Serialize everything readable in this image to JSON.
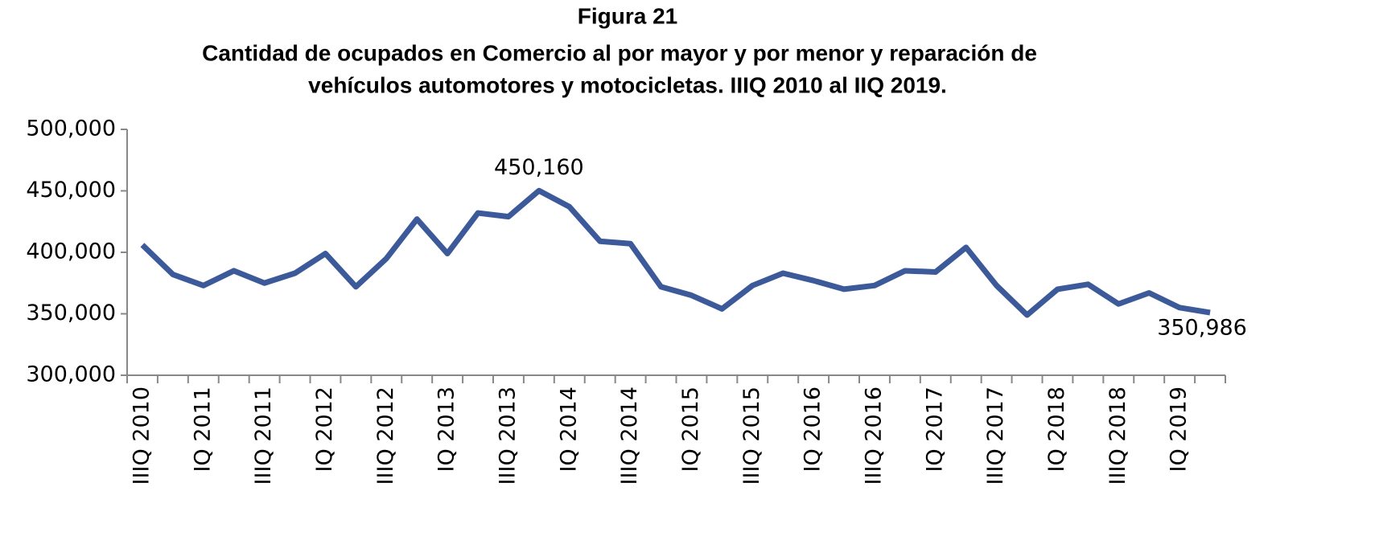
{
  "chart_data": {
    "type": "line",
    "title": "Figura 21",
    "subtitle": [
      "Cantidad de ocupados en Comercio al por mayor y por menor y reparación de",
      "vehículos automotores y motocicletas. IIIQ 2010 al IIQ 2019."
    ],
    "categories": [
      "IIIQ 2010",
      null,
      "IQ 2011",
      null,
      "IIIQ 2011",
      null,
      "IQ 2012",
      null,
      "IIIQ 2012",
      null,
      "IQ 2013",
      null,
      "IIIQ 2013",
      null,
      "IQ 2014",
      null,
      "IIIQ 2014",
      null,
      "IQ 2015",
      null,
      "IIIQ 2015",
      null,
      "IQ 2016",
      null,
      "IIIQ 2016",
      null,
      "IQ 2017",
      null,
      "IIIQ 2017",
      null,
      "IQ 2018",
      null,
      "IIIQ 2018",
      null,
      "IQ 2019",
      null
    ],
    "series": [
      {
        "color": "#3c5a9a",
        "values": [
          406000,
          382000,
          373000,
          385000,
          375000,
          383000,
          399000,
          372000,
          395000,
          427000,
          399000,
          432000,
          429000,
          450160,
          437000,
          409000,
          407000,
          372000,
          365000,
          354000,
          373000,
          383000,
          377000,
          370000,
          373000,
          385000,
          384000,
          404000,
          373000,
          349000,
          370000,
          374000,
          358000,
          367000,
          355000,
          350986
        ],
        "value_labels": [
          null,
          null,
          null,
          null,
          null,
          null,
          null,
          null,
          null,
          null,
          null,
          null,
          null,
          "450,160",
          null,
          null,
          null,
          null,
          null,
          null,
          null,
          null,
          null,
          null,
          null,
          null,
          null,
          null,
          null,
          null,
          null,
          null,
          null,
          null,
          null,
          "350,986"
        ]
      }
    ],
    "ylim": [
      300000,
      500000
    ],
    "yticks": [
      {
        "value": 300000,
        "label": "300,000"
      },
      {
        "value": 350000,
        "label": "350,000"
      },
      {
        "value": 400000,
        "label": "400,000"
      },
      {
        "value": 450000,
        "label": "450,000"
      },
      {
        "value": 500000,
        "label": "500,000"
      }
    ]
  }
}
